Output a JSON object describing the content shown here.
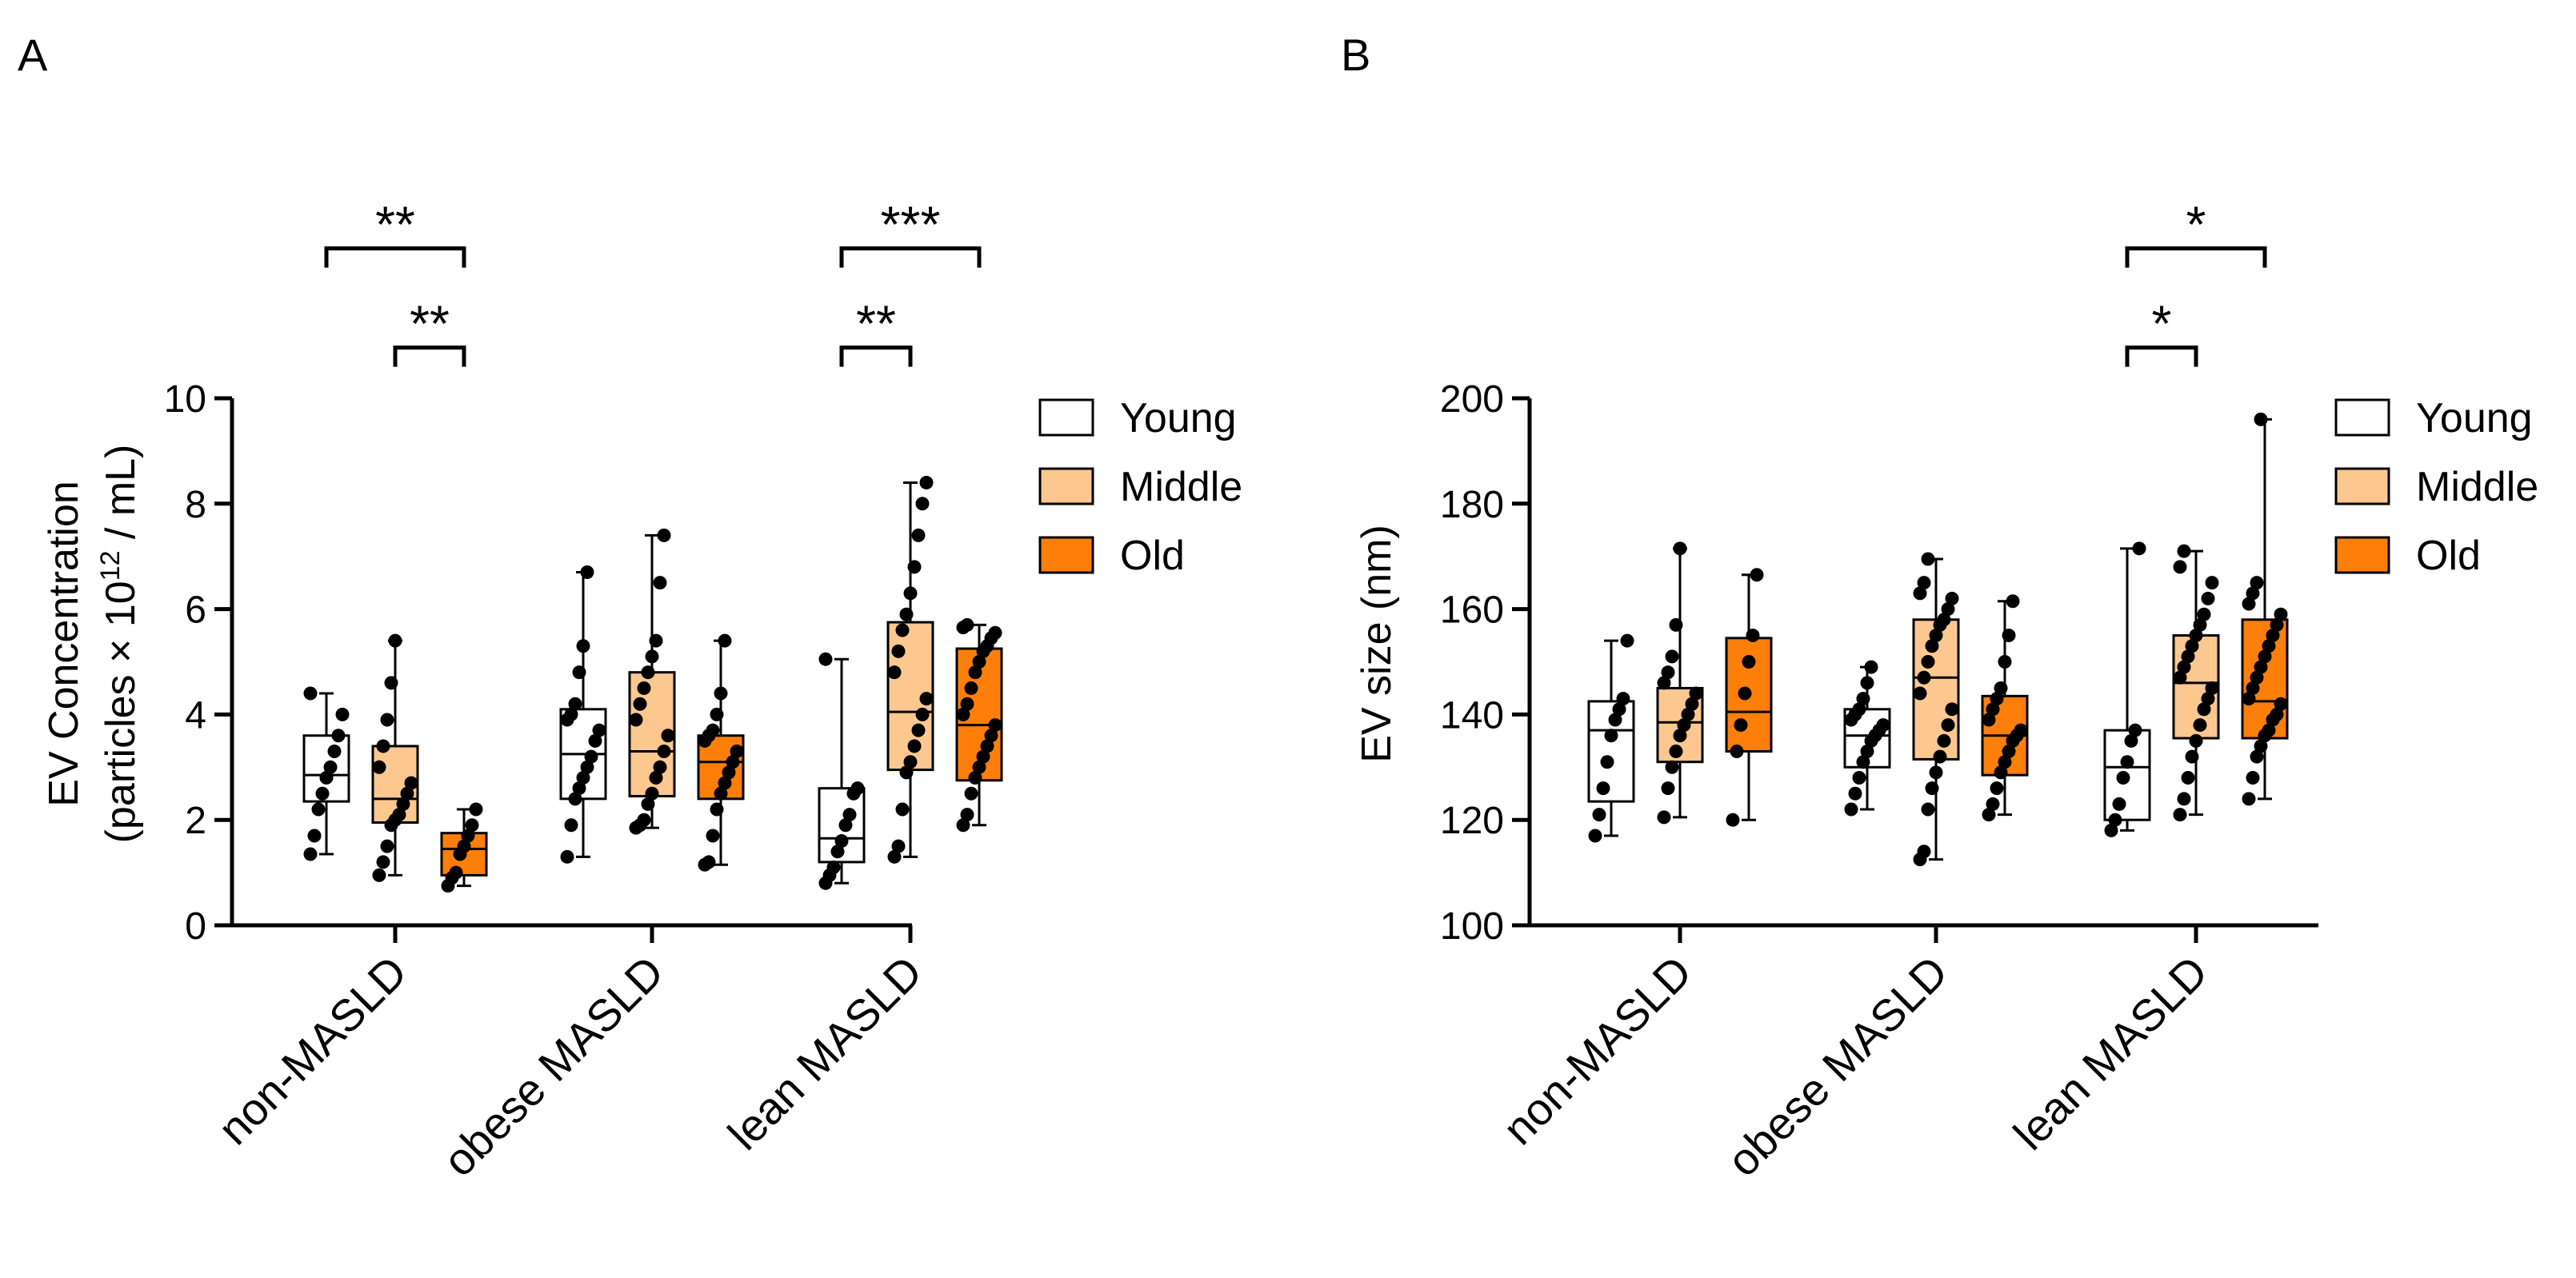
{
  "legend_labels": [
    "Young",
    "Middle",
    "Old"
  ],
  "chart_data": [
    {
      "panel_label": "A",
      "type": "box",
      "ylabel_line1": "EV Concentration",
      "ylabel_line2_prefix": "(particles × 10",
      "ylabel_superscript": "12",
      "ylabel_line2_suffix": " / mL)",
      "ylim": [
        0,
        10
      ],
      "yticks": [
        "0",
        "2",
        "4",
        "6",
        "8",
        "10"
      ],
      "categories": [
        "non-MASLD",
        "obese MASLD",
        "lean MASLD"
      ],
      "series_names": [
        "Young",
        "Middle",
        "Old"
      ],
      "colors": [
        "#ffffff",
        "#fcc88f",
        "#fd7f0a"
      ],
      "legend_position": "right",
      "groups": [
        [
          {
            "min": 1.35,
            "q1": 2.35,
            "median": 2.85,
            "q3": 3.6,
            "max": 4.4,
            "points": [
              1.35,
              1.7,
              2.2,
              2.5,
              2.8,
              3.0,
              3.3,
              3.6,
              4.0,
              4.4
            ]
          },
          {
            "min": 0.95,
            "q1": 1.95,
            "median": 2.4,
            "q3": 3.4,
            "max": 5.4,
            "points": [
              0.95,
              1.2,
              1.5,
              1.9,
              2.0,
              2.1,
              2.3,
              2.5,
              2.7,
              3.0,
              3.4,
              3.9,
              4.6,
              5.4
            ]
          },
          {
            "min": 0.75,
            "q1": 0.95,
            "median": 1.45,
            "q3": 1.75,
            "max": 2.2,
            "points": [
              0.75,
              0.9,
              1.0,
              1.35,
              1.5,
              1.7,
              1.9,
              2.2
            ]
          }
        ],
        [
          {
            "min": 1.3,
            "q1": 2.4,
            "median": 3.25,
            "q3": 4.1,
            "max": 6.7,
            "points": [
              1.3,
              1.9,
              2.4,
              2.6,
              2.8,
              3.0,
              3.2,
              3.5,
              3.7,
              3.9,
              4.0,
              4.2,
              4.8,
              5.3,
              6.7
            ]
          },
          {
            "min": 1.85,
            "q1": 2.45,
            "median": 3.3,
            "q3": 4.8,
            "max": 7.4,
            "points": [
              1.85,
              1.9,
              2.0,
              2.3,
              2.5,
              2.8,
              3.0,
              3.3,
              3.6,
              3.9,
              4.2,
              4.5,
              4.8,
              5.1,
              5.4,
              6.5,
              7.4
            ]
          },
          {
            "min": 1.15,
            "q1": 2.4,
            "median": 3.1,
            "q3": 3.6,
            "max": 5.4,
            "points": [
              1.15,
              1.2,
              1.7,
              2.2,
              2.5,
              2.7,
              2.9,
              3.1,
              3.3,
              3.5,
              3.6,
              3.7,
              4.0,
              4.4,
              5.4
            ]
          }
        ],
        [
          {
            "min": 0.8,
            "q1": 1.2,
            "median": 1.65,
            "q3": 2.6,
            "max": 5.05,
            "points": [
              0.8,
              0.95,
              1.1,
              1.4,
              1.6,
              1.9,
              2.1,
              2.5,
              2.6,
              5.05
            ]
          },
          {
            "min": 1.3,
            "q1": 2.95,
            "median": 4.05,
            "q3": 5.75,
            "max": 8.4,
            "points": [
              1.3,
              1.5,
              2.2,
              2.9,
              3.1,
              3.4,
              3.7,
              4.0,
              4.3,
              4.8,
              5.2,
              5.6,
              5.9,
              6.3,
              6.8,
              7.4,
              8.0,
              8.4
            ]
          },
          {
            "min": 1.9,
            "q1": 2.75,
            "median": 3.8,
            "q3": 5.25,
            "max": 5.7,
            "points": [
              1.9,
              2.1,
              2.5,
              2.8,
              3.0,
              3.2,
              3.4,
              3.6,
              3.8,
              4.0,
              4.2,
              4.5,
              4.8,
              5.0,
              5.2,
              5.3,
              5.45,
              5.55,
              5.65,
              5.7
            ]
          }
        ]
      ],
      "significance": [
        {
          "category": 0,
          "from": 0,
          "to": 2,
          "label": "**",
          "level": 1.35
        },
        {
          "category": 0,
          "from": 1,
          "to": 2,
          "label": "**",
          "level": 0.35
        },
        {
          "category": 2,
          "from": 0,
          "to": 2,
          "label": "***",
          "level": 1.35
        },
        {
          "category": 2,
          "from": 0,
          "to": 1,
          "label": "**",
          "level": 0.35
        }
      ]
    },
    {
      "panel_label": "B",
      "type": "box",
      "ylabel_line1": "EV size (nm)",
      "ylim": [
        100,
        200
      ],
      "yticks": [
        "100",
        "120",
        "140",
        "160",
        "180",
        "200"
      ],
      "categories": [
        "non-MASLD",
        "obese MASLD",
        "lean MASLD"
      ],
      "series_names": [
        "Young",
        "Middle",
        "Old"
      ],
      "colors": [
        "#ffffff",
        "#fcc88f",
        "#fd7f0a"
      ],
      "legend_position": "right",
      "groups": [
        [
          {
            "min": 117,
            "q1": 123.5,
            "median": 137,
            "q3": 142.5,
            "max": 154,
            "points": [
              117,
              121,
              126,
              131,
              136,
              139,
              141,
              143,
              154
            ]
          },
          {
            "min": 120.5,
            "q1": 131,
            "median": 138.5,
            "q3": 145,
            "max": 171.5,
            "points": [
              120.5,
              126,
              130,
              133,
              136,
              138,
              140,
              142,
              144,
              146,
              148,
              151,
              157,
              171.5
            ]
          },
          {
            "min": 120,
            "q1": 133,
            "median": 140.5,
            "q3": 154.5,
            "max": 166.5,
            "points": [
              120,
              133,
              138,
              144,
              150,
              155,
              166.5
            ]
          }
        ],
        [
          {
            "min": 122,
            "q1": 130,
            "median": 136,
            "q3": 141,
            "max": 149,
            "points": [
              122,
              125,
              128,
              131,
              133,
              135,
              136,
              137,
              138,
              139,
              140,
              141,
              143,
              146,
              149
            ]
          },
          {
            "min": 112.5,
            "q1": 131.5,
            "median": 147,
            "q3": 158,
            "max": 169.5,
            "points": [
              112.5,
              114,
              122,
              126,
              129,
              132,
              135,
              138,
              141,
              144,
              147,
              150,
              153,
              155,
              157,
              158,
              160,
              162,
              163,
              165,
              169.5
            ]
          },
          {
            "min": 121,
            "q1": 128.5,
            "median": 136,
            "q3": 143.5,
            "max": 161.5,
            "points": [
              121,
              123,
              126,
              129,
              131,
              133,
              135,
              136,
              137,
              139,
              141,
              143,
              145,
              150,
              155,
              161.5
            ]
          }
        ],
        [
          {
            "min": 118,
            "q1": 120,
            "median": 130,
            "q3": 137,
            "max": 171.5,
            "points": [
              118,
              120,
              123,
              128,
              131,
              135,
              137,
              171.5
            ]
          },
          {
            "min": 121,
            "q1": 135.5,
            "median": 146,
            "q3": 155,
            "max": 171,
            "points": [
              121,
              124,
              128,
              132,
              135,
              138,
              141,
              143,
              145,
              147,
              149,
              151,
              153,
              155,
              157,
              159,
              162,
              165,
              168,
              171
            ]
          },
          {
            "min": 124,
            "q1": 135.5,
            "median": 142.5,
            "q3": 158,
            "max": 196,
            "points": [
              124,
              128,
              132,
              134,
              136,
              137,
              139,
              140,
              142,
              143,
              145,
              147,
              149,
              151,
              153,
              155,
              157,
              159,
              161,
              163,
              165,
              196
            ]
          }
        ]
      ],
      "significance": [
        {
          "category": 2,
          "from": 0,
          "to": 2,
          "label": "*",
          "level": 1.35
        },
        {
          "category": 2,
          "from": 0,
          "to": 1,
          "label": "*",
          "level": 0.35
        }
      ]
    }
  ]
}
